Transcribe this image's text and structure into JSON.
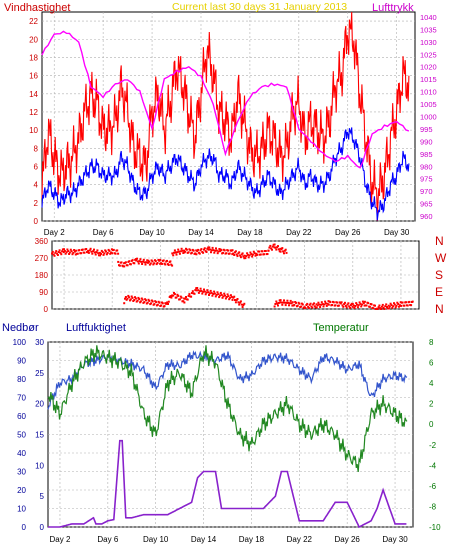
{
  "chart_data": [
    {
      "type": "line",
      "title": "Current last 30 days 31 January 2013",
      "y_left_label": "Vindhastighet",
      "y_right_label": "Lufttrykk",
      "y_left_range": [
        0,
        23
      ],
      "y_left_ticks": [
        "0",
        "2",
        "4",
        "6",
        "8",
        "10",
        "12",
        "14",
        "16",
        "18",
        "20",
        "22"
      ],
      "y_right_range": [
        958,
        1042
      ],
      "y_right_ticks": [
        "960",
        "965",
        "970",
        "975",
        "980",
        "985",
        "990",
        "995",
        "1000",
        "1005",
        "1010",
        "1015",
        "1020",
        "1025",
        "1030",
        "1035",
        "1040"
      ],
      "x_ticks": [
        "Day 2",
        "Day 6",
        "Day 10",
        "Day 14",
        "Day 18",
        "Day 22",
        "Day 26",
        "Day 30"
      ],
      "grid": true,
      "colors": {
        "gust": "#ff0000",
        "wind": "#0000ff",
        "pressure": "#ff00ff"
      },
      "series": [
        {
          "axis": "left",
          "color": "#ff0000",
          "x": [
            1,
            1.5,
            2,
            2.5,
            3,
            3.5,
            4,
            4.5,
            5,
            5.5,
            6,
            6.5,
            7,
            7.5,
            8,
            8.5,
            9,
            9.5,
            10,
            10.5,
            11,
            11.5,
            12,
            12.5,
            13,
            13.5,
            14,
            14.5,
            15,
            15.5,
            16,
            16.5,
            17,
            17.5,
            18,
            18.5,
            19,
            19.5,
            20,
            20.5,
            21,
            21.5,
            22,
            22.5,
            23,
            23.5,
            24,
            24.5,
            25,
            25.5,
            26,
            26.5,
            27,
            27.5,
            28,
            28.5,
            29,
            29.5,
            30,
            30.5,
            31
          ],
          "values": [
            4,
            10,
            7,
            5,
            6,
            7,
            9,
            12,
            14,
            13,
            10,
            10,
            11,
            15,
            12,
            8,
            7,
            6,
            12,
            14,
            10,
            13,
            17,
            15,
            12,
            9,
            14,
            19,
            16,
            12,
            11,
            9,
            14,
            11,
            8,
            7,
            8,
            10,
            9,
            7,
            8,
            12,
            13,
            9,
            11,
            10,
            9,
            11,
            15,
            16,
            21,
            20,
            14,
            9,
            4,
            3,
            5,
            9,
            12,
            16,
            15
          ]
        },
        {
          "axis": "left",
          "color": "#0000ff",
          "x": [
            1,
            1.5,
            2,
            2.5,
            3,
            3.5,
            4,
            4.5,
            5,
            5.5,
            6,
            6.5,
            7,
            7.5,
            8,
            8.5,
            9,
            9.5,
            10,
            10.5,
            11,
            11.5,
            12,
            12.5,
            13,
            13.5,
            14,
            14.5,
            15,
            15.5,
            16,
            16.5,
            17,
            17.5,
            18,
            18.5,
            19,
            19.5,
            20,
            20.5,
            21,
            21.5,
            22,
            22.5,
            23,
            23.5,
            24,
            24.5,
            25,
            25.5,
            26,
            26.5,
            27,
            27.5,
            28,
            28.5,
            29,
            29.5,
            30,
            30.5,
            31
          ],
          "values": [
            2,
            4,
            3,
            2,
            3,
            3,
            4,
            5,
            6,
            6,
            5,
            5,
            5,
            7,
            6,
            4,
            3,
            3,
            5,
            6,
            5,
            6,
            7,
            6,
            5,
            4,
            6,
            7,
            7,
            5,
            5,
            4,
            6,
            5,
            4,
            3,
            4,
            5,
            4,
            3,
            4,
            5,
            6,
            4,
            5,
            4,
            4,
            5,
            7,
            8,
            10,
            9,
            7,
            4,
            2,
            1,
            2,
            4,
            5,
            7,
            6
          ]
        },
        {
          "axis": "right",
          "color": "#ff00ff",
          "x": [
            1,
            2,
            3,
            4,
            5,
            6,
            7,
            8,
            9,
            10,
            11,
            12,
            13,
            14,
            15,
            16,
            17,
            18,
            19,
            20,
            21,
            22,
            23,
            24,
            25,
            26,
            27,
            28,
            29,
            30,
            31
          ],
          "values": [
            1025,
            1033,
            1034,
            1030,
            1012,
            1008,
            1013,
            1015,
            1010,
            995,
            1015,
            1018,
            1020,
            1016,
            1005,
            985,
            998,
            1008,
            1012,
            1013,
            1012,
            995,
            990,
            985,
            982,
            984,
            979,
            993,
            996,
            998,
            994
          ]
        }
      ]
    },
    {
      "type": "scatter",
      "title": "",
      "y_range": [
        0,
        360
      ],
      "y_ticks": [
        "0",
        "90",
        "180",
        "270",
        "360"
      ],
      "direction_labels": [
        "N",
        "W",
        "S",
        "E",
        "N"
      ],
      "x_ticks": [
        "Day 2",
        "Day 6",
        "Day 10",
        "Day 14",
        "Day 18",
        "Day 22",
        "Day 26",
        "Day 30"
      ],
      "grid": true,
      "color": "#ff0000",
      "segments": [
        {
          "x": [
            1,
            2,
            3,
            4,
            5,
            6,
            6.5
          ],
          "values": [
            290,
            305,
            300,
            310,
            295,
            305,
            300
          ]
        },
        {
          "x": [
            6.5,
            7,
            8,
            9,
            10,
            11
          ],
          "values": [
            240,
            235,
            255,
            245,
            250,
            240
          ]
        },
        {
          "x": [
            11,
            12,
            13,
            14,
            15,
            16,
            17,
            18,
            19
          ],
          "values": [
            295,
            310,
            300,
            315,
            305,
            300,
            280,
            295,
            300
          ]
        },
        {
          "x": [
            19,
            19.5,
            20,
            20.5
          ],
          "values": [
            320,
            330,
            315,
            300
          ]
        },
        {
          "x": [
            19.5,
            20,
            21,
            22,
            23,
            24,
            25,
            26,
            27,
            28,
            29,
            30,
            31
          ],
          "values": [
            25,
            35,
            30,
            15,
            20,
            30,
            25,
            15,
            30,
            5,
            15,
            25,
            30
          ]
        },
        {
          "x": [
            7,
            7.2,
            10.5,
            11,
            12,
            13,
            16,
            17
          ],
          "values": [
            40,
            60,
            20,
            80,
            45,
            100,
            60,
            15
          ]
        }
      ]
    },
    {
      "type": "line",
      "title": "",
      "y_left_label": "Nedbør",
      "y_left2_label": "Luftfuktighet",
      "y_right_label": "Temperatur",
      "humidity_range": [
        0,
        100
      ],
      "humidity_ticks": [
        "0",
        "10",
        "20",
        "30",
        "40",
        "50",
        "60",
        "70",
        "80",
        "90",
        "100"
      ],
      "precip_range": [
        0,
        30
      ],
      "precip_ticks": [
        "0",
        "5",
        "10",
        "15",
        "20",
        "25",
        "30"
      ],
      "temperature_range": [
        -10,
        8
      ],
      "temperature_ticks": [
        "-10",
        "-8",
        "-6",
        "-4",
        "-2",
        "0",
        "2",
        "4",
        "6",
        "8"
      ],
      "x_ticks": [
        "Day 2",
        "Day 6",
        "Day 10",
        "Day 14",
        "Day 18",
        "Day 22",
        "Day 26",
        "Day 30"
      ],
      "grid": true,
      "colors": {
        "humidity": "#3355cc",
        "temperature": "#228822",
        "precip": "#8822cc"
      },
      "series": [
        {
          "axis": "humidity",
          "color": "#3355cc",
          "x": [
            1,
            2,
            3,
            4,
            5,
            6,
            7,
            8,
            9,
            10,
            11,
            12,
            13,
            14,
            15,
            16,
            17,
            18,
            19,
            20,
            21,
            22,
            23,
            24,
            25,
            26,
            27,
            28,
            29,
            30,
            31
          ],
          "values": [
            65,
            78,
            80,
            88,
            90,
            92,
            90,
            88,
            85,
            75,
            88,
            87,
            93,
            92,
            90,
            93,
            80,
            82,
            90,
            92,
            91,
            85,
            80,
            92,
            90,
            85,
            88,
            70,
            80,
            82,
            80
          ]
        },
        {
          "axis": "temperature",
          "color": "#228822",
          "x": [
            1,
            2,
            3,
            4,
            5,
            6,
            7,
            8,
            9,
            10,
            11,
            12,
            13,
            14,
            15,
            16,
            17,
            18,
            19,
            20,
            21,
            22,
            23,
            24,
            25,
            26,
            27,
            28,
            29,
            30,
            31
          ],
          "values": [
            3,
            1,
            4,
            6,
            7,
            6.5,
            6,
            5,
            1,
            -1,
            4,
            5,
            3,
            7,
            6,
            2,
            -1,
            -2,
            0,
            1,
            2,
            0,
            -1,
            0,
            -1,
            -3,
            -4,
            1,
            2,
            1,
            0
          ]
        },
        {
          "axis": "precip",
          "color": "#8822cc",
          "x": [
            1,
            2,
            3,
            4,
            4.8,
            5,
            5.5,
            6,
            6.5,
            7,
            7.2,
            7.5,
            8,
            9,
            10,
            11,
            12,
            13,
            13.5,
            14,
            15,
            15.5,
            16,
            17,
            18,
            19,
            20,
            20.5,
            21,
            22,
            23,
            24,
            25,
            26,
            27,
            28,
            28.5,
            29,
            30,
            31
          ],
          "values": [
            0,
            0,
            0.5,
            0.5,
            1.5,
            0.5,
            0.5,
            1,
            1.2,
            14,
            14,
            1.5,
            1.5,
            2,
            2,
            2,
            3,
            4,
            8,
            9,
            9,
            3,
            3,
            3,
            3,
            3,
            5,
            9,
            9,
            1,
            1,
            1,
            4,
            4,
            0,
            1,
            3,
            6,
            0.5,
            0.5
          ]
        }
      ]
    }
  ]
}
